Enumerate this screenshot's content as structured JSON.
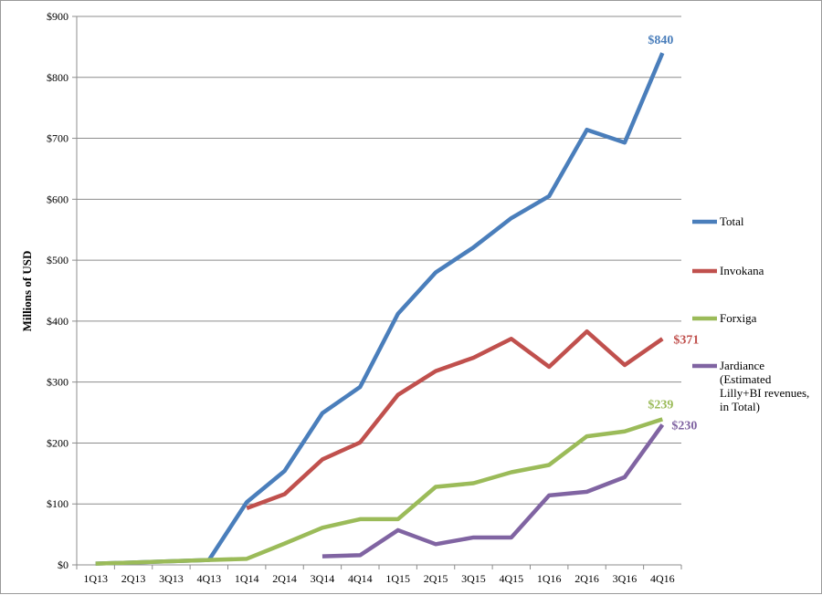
{
  "chart_data": {
    "type": "line",
    "title": "",
    "xlabel": "",
    "ylabel": "Millions of USD",
    "ylim": [
      0,
      900
    ],
    "yticks": [
      0,
      100,
      200,
      300,
      400,
      500,
      600,
      700,
      800,
      900
    ],
    "ytick_labels": [
      "$0",
      "$100",
      "$200",
      "$300",
      "$400",
      "$500",
      "$600",
      "$700",
      "$800",
      "$900"
    ],
    "categories": [
      "1Q13",
      "2Q13",
      "3Q13",
      "4Q13",
      "1Q14",
      "2Q14",
      "3Q14",
      "4Q14",
      "1Q15",
      "2Q15",
      "3Q15",
      "4Q15",
      "1Q16",
      "2Q16",
      "3Q16",
      "4Q16"
    ],
    "grid": true,
    "legend_position": "right",
    "series": [
      {
        "name": "Total",
        "color": "#4a7ebb",
        "values": [
          2,
          4,
          6,
          8,
          103,
          154,
          249,
          292,
          412,
          480,
          521,
          569,
          605,
          714,
          693,
          840
        ],
        "end_label": "$840"
      },
      {
        "name": "Invokana",
        "color": "#c0504d",
        "values": [
          null,
          null,
          null,
          null,
          93,
          116,
          173,
          201,
          279,
          318,
          340,
          371,
          325,
          383,
          328,
          371
        ],
        "end_label": "$371"
      },
      {
        "name": "Forxiga",
        "color": "#9bbb59",
        "values": [
          2,
          4,
          6,
          8,
          10,
          35,
          61,
          75,
          75,
          128,
          134,
          152,
          164,
          211,
          219,
          239
        ],
        "end_label": "$239"
      },
      {
        "name": "Jardiance",
        "legend_lines": [
          "Jardiance",
          "(Estimated",
          "Lilly+BI revenues,",
          "in Total)"
        ],
        "color": "#8064a2",
        "values": [
          null,
          null,
          null,
          null,
          null,
          null,
          14,
          16,
          57,
          34,
          45,
          45,
          114,
          120,
          144,
          230
        ],
        "end_label": "$230"
      }
    ]
  }
}
